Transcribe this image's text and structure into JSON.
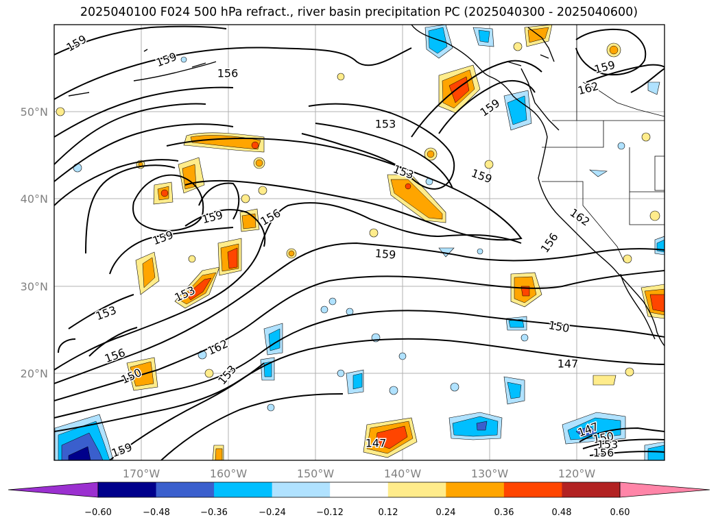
{
  "title": "2025040100 F024 500 hPa refract., river basin precipitation PC (2025040300 - 2025040600)",
  "colors": {
    "grid": "#b0b0b0",
    "axis_label": "#808080",
    "cb_levels": [
      "#9b30d0",
      "#00008b",
      "#3a5fcd",
      "#00bfff",
      "#b0e2ff",
      "#ffffff",
      "#ffec8b",
      "#ffa500",
      "#ff4500",
      "#b22222",
      "#ff85a8"
    ]
  },
  "axes": {
    "lon_labels": [
      "170°W",
      "160°W",
      "150°W",
      "140°W",
      "130°W",
      "120°W"
    ],
    "lat_labels": [
      "50°N",
      "40°N",
      "30°N",
      "20°N"
    ]
  },
  "colorbar": {
    "tick_labels": [
      "−0.60",
      "−0.48",
      "−0.36",
      "−0.24",
      "−0.12",
      "0.12",
      "0.24",
      "0.36",
      "0.48",
      "0.60"
    ]
  },
  "contour_labels": [
    {
      "text": "159",
      "rot": -30
    },
    {
      "text": "159",
      "rot": -20
    },
    {
      "text": "156",
      "rot": 0
    },
    {
      "text": "153",
      "rot": 0
    },
    {
      "text": "159",
      "rot": -20
    },
    {
      "text": "159",
      "rot": -15
    },
    {
      "text": "162",
      "rot": -15
    },
    {
      "text": "153",
      "rot": 20
    },
    {
      "text": "159",
      "rot": 20
    },
    {
      "text": "162",
      "rot": 35
    },
    {
      "text": "156",
      "rot": -55
    },
    {
      "text": "159",
      "rot": -15
    },
    {
      "text": "159",
      "rot": -35
    },
    {
      "text": "156",
      "rot": -30
    },
    {
      "text": "159",
      "rot": 5
    },
    {
      "text": "153",
      "rot": -25
    },
    {
      "text": "153",
      "rot": -20
    },
    {
      "text": "156",
      "rot": -20
    },
    {
      "text": "150",
      "rot": -25
    },
    {
      "text": "162",
      "rot": -25
    },
    {
      "text": "153",
      "rot": -50
    },
    {
      "text": "150",
      "rot": 10
    },
    {
      "text": "147",
      "rot": 0
    },
    {
      "text": "147",
      "rot": 0
    },
    {
      "text": "159",
      "rot": -20
    },
    {
      "text": "147",
      "rot": -20
    },
    {
      "text": "150",
      "rot": -10
    },
    {
      "text": "153",
      "rot": 0
    },
    {
      "text": "156",
      "rot": 0
    }
  ]
}
